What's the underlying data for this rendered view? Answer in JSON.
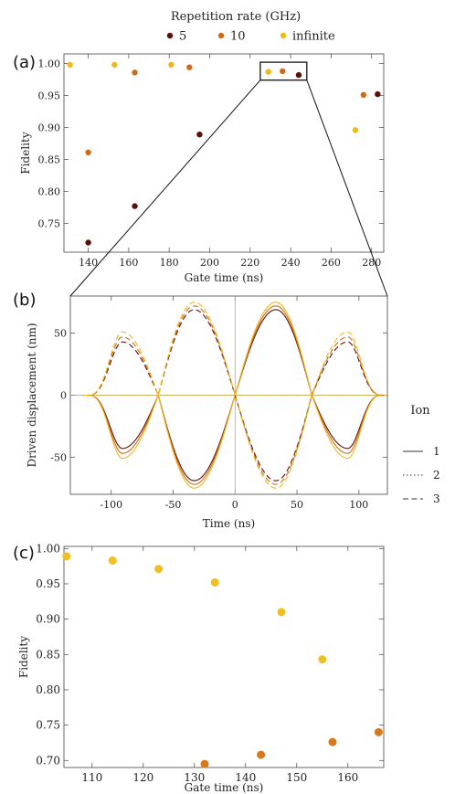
{
  "legend": {
    "title": "Repetition rate (GHz)",
    "items": [
      {
        "label": "5",
        "color": "#5c0f08"
      },
      {
        "label": "10",
        "color": "#d36b16"
      },
      {
        "label": "infinite",
        "color": "#f0b81a"
      }
    ]
  },
  "ion_legend": {
    "title": "Ion",
    "items": [
      {
        "label": "1",
        "dash": "solid"
      },
      {
        "label": "2",
        "dash": "dotted"
      },
      {
        "label": "3",
        "dash": "dashed"
      }
    ]
  },
  "chart_data": [
    {
      "type": "scatter",
      "panel": "(a)",
      "xlabel": "Gate time (ns)",
      "ylabel": "Fidelity",
      "xlim": [
        128,
        286
      ],
      "ylim": [
        0.705,
        1.015
      ],
      "xticks": [
        140,
        160,
        180,
        200,
        220,
        240,
        260,
        280
      ],
      "yticks": [
        0.75,
        0.8,
        0.85,
        0.9,
        0.95,
        1.0
      ],
      "xticklabels": [
        "140",
        "160",
        "180",
        "200",
        "220",
        "240",
        "260",
        "280"
      ],
      "yticklabels": [
        "0.75",
        "0.80",
        "0.85",
        "0.90",
        "0.95",
        "1.00"
      ],
      "series": [
        {
          "name": "5",
          "color": "#5c0f08",
          "points": [
            [
              140,
              0.72
            ],
            [
              163,
              0.777
            ],
            [
              195,
              0.889
            ],
            [
              244,
              0.982
            ],
            [
              283,
              0.952
            ]
          ]
        },
        {
          "name": "10",
          "color": "#d36b16",
          "points": [
            [
              140,
              0.861
            ],
            [
              163,
              0.986
            ],
            [
              190,
              0.994
            ],
            [
              236,
              0.988
            ],
            [
              276,
              0.951
            ]
          ]
        },
        {
          "name": "infinite",
          "color": "#f0b81a",
          "points": [
            [
              131,
              0.998
            ],
            [
              153,
              0.998
            ],
            [
              181,
              0.998
            ],
            [
              229,
              0.987
            ],
            [
              272,
              0.896
            ]
          ]
        }
      ],
      "zoom_box": {
        "x": [
          225,
          248
        ],
        "y": [
          0.974,
          1.002
        ]
      }
    },
    {
      "type": "line",
      "panel": "(b)",
      "xlabel": "Time (ns)",
      "ylabel": "Driven displacement (nm)",
      "xlim": [
        -133,
        123
      ],
      "ylim": [
        -80,
        80
      ],
      "xticks": [
        -100,
        -50,
        0,
        50,
        100
      ],
      "yticks": [
        -50,
        0,
        50
      ],
      "xticklabels": [
        "-100",
        "-50",
        "0",
        "50",
        "100"
      ],
      "yticklabels": [
        "-50",
        "0",
        "50"
      ],
      "t_range": [
        -122,
        122
      ],
      "peaks": [
        {
          "t": -91,
          "amp": [
            -43,
            -47,
            -51
          ]
        },
        {
          "t": -33,
          "amp": [
            -69,
            -72,
            -75
          ]
        },
        {
          "t": 33,
          "amp": [
            69,
            72,
            75
          ]
        },
        {
          "t": 91,
          "amp": [
            -43,
            -47,
            -51
          ]
        }
      ],
      "series": [
        {
          "ion": "1",
          "color": "#5c0f08",
          "dash": "solid",
          "sign": 1
        },
        {
          "ion": "1",
          "color": "#d36b16",
          "dash": "solid",
          "sign": 1
        },
        {
          "ion": "1",
          "color": "#f0b81a",
          "dash": "solid",
          "sign": 1
        },
        {
          "ion": "2",
          "color": "#5c0f08",
          "dash": "dotted",
          "sign": 0
        },
        {
          "ion": "2",
          "color": "#d36b16",
          "dash": "dotted",
          "sign": 0
        },
        {
          "ion": "2",
          "color": "#f0b81a",
          "dash": "dotted",
          "sign": 0
        },
        {
          "ion": "3",
          "color": "#5c0f08",
          "dash": "dashed",
          "sign": -1
        },
        {
          "ion": "3",
          "color": "#d36b16",
          "dash": "dashed",
          "sign": -1
        },
        {
          "ion": "3",
          "color": "#f0b81a",
          "dash": "dashed",
          "sign": -1
        }
      ]
    },
    {
      "type": "scatter",
      "panel": "(c)",
      "xlabel": "Gate time (ns)",
      "ylabel": "Fidelity",
      "xlim": [
        104.5,
        167
      ],
      "ylim": [
        0.69,
        1.003
      ],
      "xticks": [
        110,
        120,
        130,
        140,
        150,
        160
      ],
      "yticks": [
        0.7,
        0.75,
        0.8,
        0.85,
        0.9,
        0.95,
        1.0
      ],
      "xticklabels": [
        "110",
        "120",
        "130",
        "140",
        "150",
        "160"
      ],
      "yticklabels": [
        "0.70",
        "0.75",
        "0.80",
        "0.85",
        "0.90",
        "0.95",
        "1.00"
      ],
      "series": [
        {
          "name": "",
          "color": "#f0c020",
          "points": [
            [
              105,
              0.989
            ],
            [
              114,
              0.983
            ],
            [
              123,
              0.971
            ],
            [
              134,
              0.952
            ],
            [
              147,
              0.91
            ],
            [
              155,
              0.843
            ]
          ]
        },
        {
          "name": "",
          "color": "#d87a1a",
          "points": [
            [
              132,
              0.695
            ],
            [
              143,
              0.708
            ],
            [
              157,
              0.726
            ],
            [
              166,
              0.74
            ]
          ]
        }
      ]
    }
  ]
}
